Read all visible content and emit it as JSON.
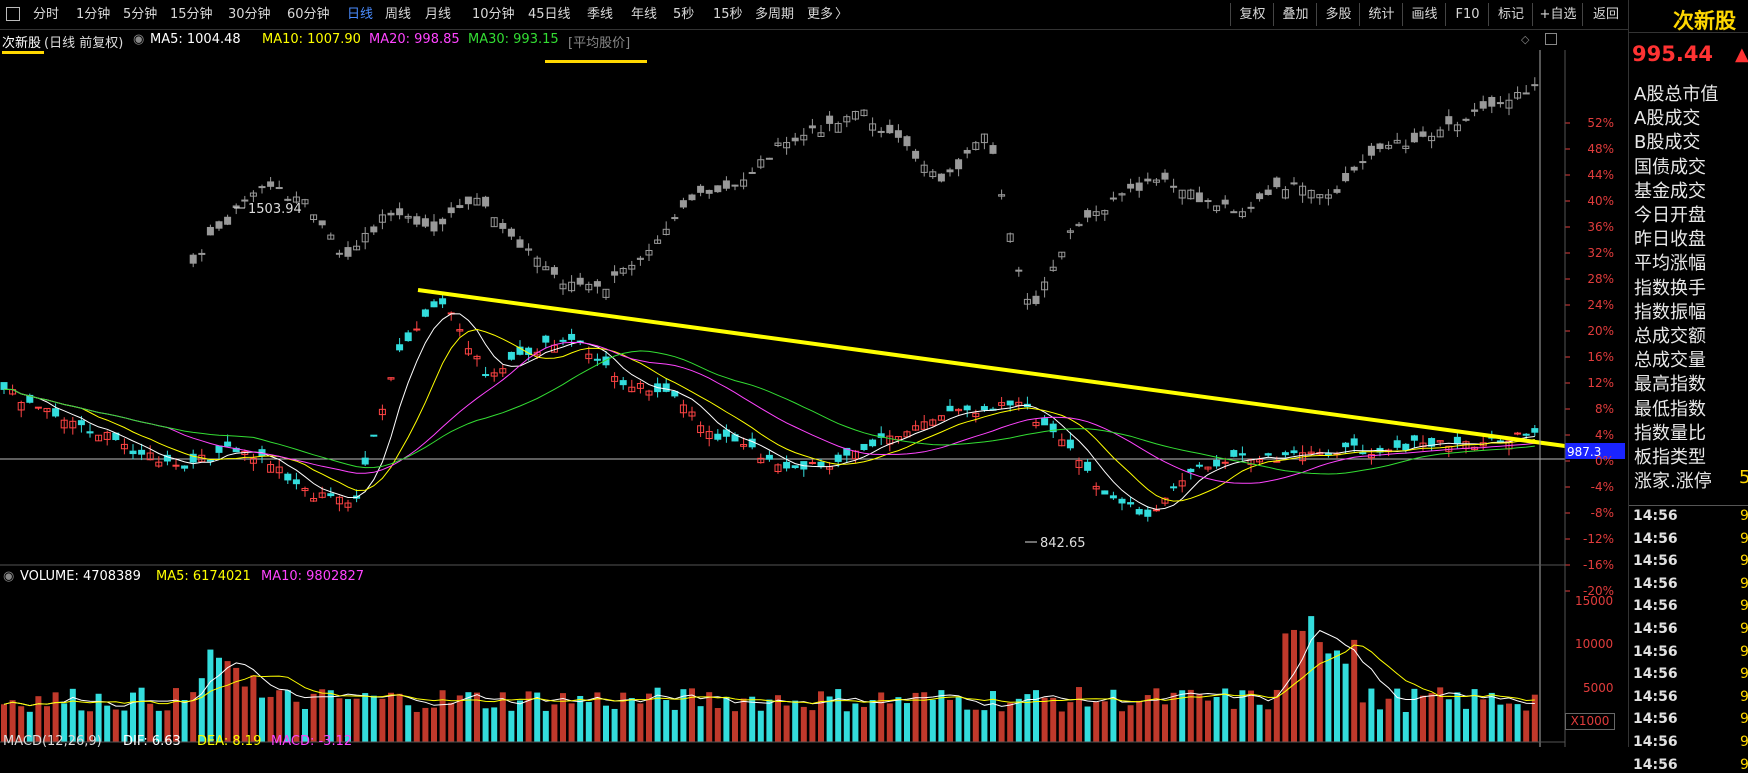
{
  "toolbar": {
    "periods": [
      "分时",
      "1分钟",
      "5分钟",
      "15分钟",
      "30分钟",
      "60分钟",
      "日线",
      "周线",
      "月线",
      "10分钟",
      "45日线",
      "季线",
      "年线",
      "5秒",
      "15秒",
      "多周期",
      "更多"
    ],
    "active_period": "日线",
    "more_arrow": "〉",
    "right_buttons": [
      "复权",
      "叠加",
      "多股",
      "统计",
      "画线",
      "F10",
      "标记",
      "+自选",
      "返回"
    ]
  },
  "info": {
    "title": "次新股",
    "mode": "(日线 前复权)",
    "ma5": "MA5: 1004.48",
    "ma10": "MA10: 1007.90",
    "ma20": "MA20: 998.85",
    "ma30": "MA30: 993.15",
    "avg_label": "[平均股价]",
    "colors": {
      "ma5": "#ffffff",
      "ma10": "#ffff00",
      "ma20": "#ff44ff",
      "ma30": "#33dd33",
      "title": "#ffffff",
      "bracket": "#888888"
    }
  },
  "price_chart": {
    "high_label": "1503.94",
    "low_label": "842.65",
    "current_tag": "987.3",
    "y_axis_labels": [
      "52%",
      "48%",
      "44%",
      "40%",
      "36%",
      "32%",
      "28%",
      "24%",
      "20%",
      "16%",
      "12%",
      "8%",
      "4%",
      "0%",
      "-4%",
      "-8%",
      "-12%",
      "-16%",
      "-20%"
    ]
  },
  "volume": {
    "label": "VOLUME: 4708389",
    "ma5": "MA5: 6174021",
    "ma10": "MA10: 9802827",
    "y_axis_labels": [
      "15000",
      "10000",
      "5000"
    ],
    "unit": "X1000"
  },
  "macd": {
    "label": "MACD(12,26,9)",
    "dif": "DIF: 6.63",
    "dea": "DEA: 8.19",
    "macd": "MACD: -3.12"
  },
  "side_panel": {
    "index_name": "次新股",
    "index_value": "995.44",
    "up_arrow": "▲",
    "menu_items": [
      "A股总市值",
      "A股成交",
      "B股成交",
      "国债成交",
      "基金成交",
      "今日开盘",
      "昨日收盘",
      "平均涨幅",
      "指数换手",
      "指数振幅",
      "总成交额",
      "总成交量",
      "最高指数",
      "最低指数",
      "指数量比",
      "板指类型",
      "涨家.涨停"
    ],
    "zhangjia_value": "5",
    "times": [
      "14:56",
      "14:56",
      "14:56",
      "14:56",
      "14:56",
      "14:56",
      "14:56",
      "14:56",
      "14:56",
      "14:56",
      "14:56",
      "14:56"
    ],
    "time_values": [
      "9",
      "9",
      "9",
      "9",
      "9",
      "9",
      "9",
      "9",
      "9",
      "9",
      "9",
      "9"
    ]
  }
}
